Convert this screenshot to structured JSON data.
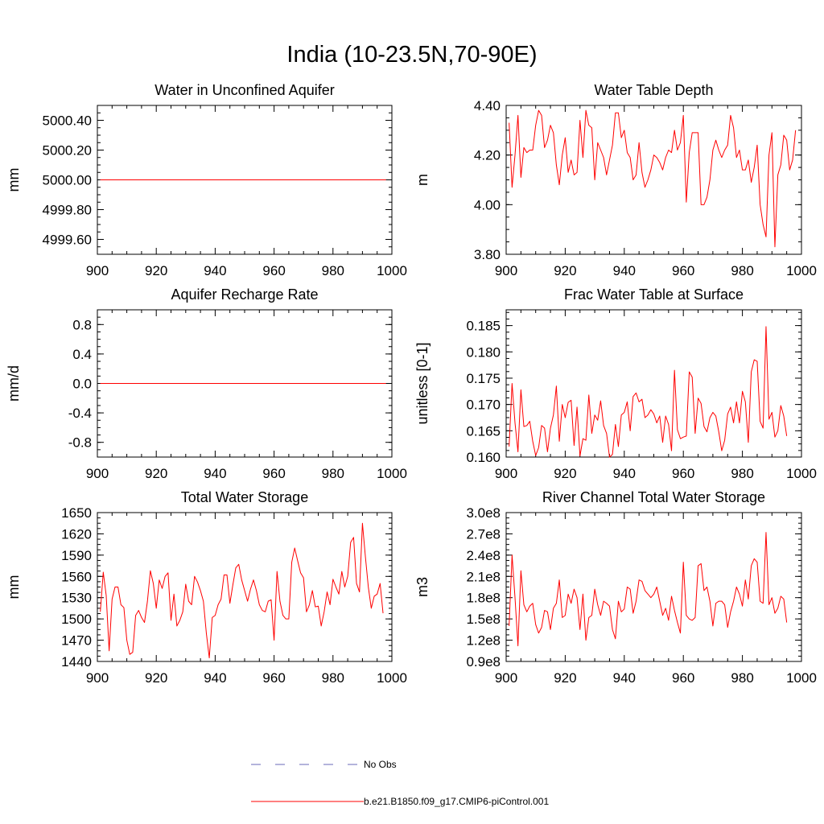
{
  "title": "India (10-23.5N,70-90E)",
  "colors": {
    "model": "#ff0000",
    "obs": "#6a6ab8",
    "axis": "#000000"
  },
  "legend": {
    "placement": "bottom-center",
    "entries": [
      {
        "label": "No Obs",
        "style": "dashed",
        "color": "#6a6ab8"
      },
      {
        "label": "b.e21.B1850.f09_g17.CMIP6-piControl.001",
        "style": "solid",
        "color": "#ff0000"
      }
    ]
  },
  "chart_data": [
    {
      "type": "line",
      "title": "Water in Unconfined Aquifer",
      "ylabel": "mm",
      "xlim": [
        900,
        1000
      ],
      "ylim": [
        4999.5,
        5000.5
      ],
      "xticks": [
        "900",
        "920",
        "940",
        "960",
        "980",
        "1000"
      ],
      "yticks": [
        {
          "value": 4999.6,
          "label": "4999.60"
        },
        {
          "value": 4999.8,
          "label": "4999.80"
        },
        {
          "value": 5000.0,
          "label": "5000.00"
        },
        {
          "value": 5000.2,
          "label": "5000.20"
        },
        {
          "value": 5000.4,
          "label": "5000.40"
        }
      ],
      "series": [
        {
          "x_start": 901,
          "y": [
            5000,
            5000,
            5000,
            5000,
            5000,
            5000,
            5000,
            5000,
            5000,
            5000,
            5000,
            5000,
            5000,
            5000,
            5000,
            5000,
            5000,
            5000,
            5000,
            5000,
            5000,
            5000,
            5000,
            5000,
            5000,
            5000,
            5000,
            5000,
            5000,
            5000,
            5000,
            5000,
            5000,
            5000,
            5000,
            5000,
            5000,
            5000,
            5000,
            5000,
            5000,
            5000,
            5000,
            5000,
            5000,
            5000,
            5000,
            5000,
            5000,
            5000,
            5000,
            5000,
            5000,
            5000,
            5000,
            5000,
            5000,
            5000,
            5000,
            5000,
            5000,
            5000,
            5000,
            5000,
            5000,
            5000,
            5000,
            5000,
            5000,
            5000,
            5000,
            5000,
            5000,
            5000,
            5000,
            5000,
            5000,
            5000,
            5000,
            5000,
            5000,
            5000,
            5000,
            5000,
            5000,
            5000,
            5000,
            5000,
            5000,
            5000,
            5000,
            5000,
            5000,
            5000,
            5000,
            5000,
            5000,
            5000
          ]
        }
      ]
    },
    {
      "type": "line",
      "title": "Water Table Depth",
      "ylabel": "m",
      "xlim": [
        900,
        1000
      ],
      "ylim": [
        3.8,
        4.4
      ],
      "xticks": [
        "900",
        "920",
        "940",
        "960",
        "980",
        "1000"
      ],
      "yticks": [
        {
          "value": 3.8,
          "label": "3.80"
        },
        {
          "value": 4.0,
          "label": "4.00"
        },
        {
          "value": 4.2,
          "label": "4.20"
        },
        {
          "value": 4.4,
          "label": "4.40"
        }
      ],
      "series": [
        {
          "x_start": 901,
          "y": [
            4.33,
            4.07,
            4.2,
            4.36,
            4.11,
            4.23,
            4.21,
            4.22,
            4.22,
            4.32,
            4.38,
            4.36,
            4.23,
            4.26,
            4.32,
            4.29,
            4.16,
            4.08,
            4.2,
            4.27,
            4.13,
            4.18,
            4.12,
            4.13,
            4.34,
            4.19,
            4.38,
            4.32,
            4.31,
            4.1,
            4.25,
            4.22,
            4.19,
            4.12,
            4.18,
            4.24,
            4.37,
            4.37,
            4.27,
            4.3,
            4.21,
            4.19,
            4.1,
            4.12,
            4.25,
            4.13,
            4.07,
            4.1,
            4.14,
            4.2,
            4.19,
            4.17,
            4.14,
            4.19,
            4.22,
            4.21,
            4.3,
            4.22,
            4.25,
            4.36,
            4.01,
            4.21,
            4.29,
            4.29,
            4.29,
            4.0,
            4.0,
            4.03,
            4.1,
            4.22,
            4.26,
            4.22,
            4.19,
            4.22,
            4.24,
            4.36,
            4.31,
            4.19,
            4.22,
            4.14,
            4.14,
            4.18,
            4.09,
            4.15,
            4.24,
            4.0,
            3.92,
            3.87,
            4.2,
            4.29,
            3.83,
            4.12,
            4.16,
            4.28,
            4.26,
            4.14,
            4.18,
            4.3
          ]
        }
      ]
    },
    {
      "type": "line",
      "title": "Aquifer Recharge Rate",
      "ylabel": "mm/d",
      "xlim": [
        900,
        1000
      ],
      "ylim": [
        -1.0,
        1.0
      ],
      "xticks": [
        "900",
        "920",
        "940",
        "960",
        "980",
        "1000"
      ],
      "yticks": [
        {
          "value": -0.8,
          "label": "-0.8"
        },
        {
          "value": -0.4,
          "label": "-0.4"
        },
        {
          "value": 0.0,
          "label": "0.0"
        },
        {
          "value": 0.4,
          "label": "0.4"
        },
        {
          "value": 0.8,
          "label": "0.8"
        }
      ],
      "series": [
        {
          "x_start": 901,
          "y": [
            0,
            0,
            0,
            0,
            0,
            0,
            0,
            0,
            0,
            0,
            0,
            0,
            0,
            0,
            0,
            0,
            0,
            0,
            0,
            0,
            0,
            0,
            0,
            0,
            0,
            0,
            0,
            0,
            0,
            0,
            0,
            0,
            0,
            0,
            0,
            0,
            0,
            0,
            0,
            0,
            0,
            0,
            0,
            0,
            0,
            0,
            0,
            0,
            0,
            0,
            0,
            0,
            0,
            0,
            0,
            0,
            0,
            0,
            0,
            0,
            0,
            0,
            0,
            0,
            0,
            0,
            0,
            0,
            0,
            0,
            0,
            0,
            0,
            0,
            0,
            0,
            0,
            0,
            0,
            0,
            0,
            0,
            0,
            0,
            0,
            0,
            0,
            0,
            0,
            0,
            0,
            0,
            0,
            0,
            0,
            0,
            0,
            0
          ]
        }
      ]
    },
    {
      "type": "line",
      "title": "Frac Water Table at Surface",
      "ylabel": "unitless [0-1]",
      "xlim": [
        900,
        1000
      ],
      "ylim": [
        0.16,
        0.188
      ],
      "xticks": [
        "900",
        "920",
        "940",
        "960",
        "980",
        "1000"
      ],
      "yticks": [
        {
          "value": 0.16,
          "label": "0.160"
        },
        {
          "value": 0.165,
          "label": "0.165"
        },
        {
          "value": 0.17,
          "label": "0.170"
        },
        {
          "value": 0.175,
          "label": "0.175"
        },
        {
          "value": 0.18,
          "label": "0.180"
        },
        {
          "value": 0.185,
          "label": "0.185"
        }
      ],
      "series": [
        {
          "x_start": 901,
          "y": [
            0.162,
            0.174,
            0.1665,
            0.161,
            0.1728,
            0.1658,
            0.166,
            0.1668,
            0.163,
            0.1603,
            0.1618,
            0.166,
            0.1655,
            0.161,
            0.1655,
            0.168,
            0.1735,
            0.163,
            0.17,
            0.1675,
            0.1704,
            0.1708,
            0.1622,
            0.1695,
            0.1602,
            0.1635,
            0.1632,
            0.1718,
            0.1645,
            0.168,
            0.167,
            0.1707,
            0.166,
            0.1645,
            0.16,
            0.1605,
            0.1662,
            0.162,
            0.168,
            0.1685,
            0.1705,
            0.165,
            0.1715,
            0.1722,
            0.1705,
            0.171,
            0.1675,
            0.168,
            0.169,
            0.1682,
            0.1665,
            0.1678,
            0.1628,
            0.1678,
            0.1662,
            0.1612,
            0.1765,
            0.1652,
            0.1635,
            0.1638,
            0.164,
            0.1762,
            0.1752,
            0.1645,
            0.1712,
            0.1702,
            0.1658,
            0.1648,
            0.1675,
            0.1685,
            0.1678,
            0.1648,
            0.1612,
            0.1632,
            0.1682,
            0.1695,
            0.1665,
            0.1705,
            0.1665,
            0.1725,
            0.1705,
            0.1628,
            0.1762,
            0.1785,
            0.1782,
            0.1668,
            0.1655,
            0.1848,
            0.1672,
            0.1685,
            0.1638,
            0.165,
            0.1698,
            0.1678,
            0.164
          ]
        }
      ]
    },
    {
      "type": "line",
      "title": "Total Water Storage",
      "ylabel": "mm",
      "xlim": [
        900,
        1000
      ],
      "ylim": [
        1440,
        1650
      ],
      "xticks": [
        "900",
        "920",
        "940",
        "960",
        "980",
        "1000"
      ],
      "yticks": [
        {
          "value": 1440,
          "label": "1440"
        },
        {
          "value": 1470,
          "label": "1470"
        },
        {
          "value": 1500,
          "label": "1500"
        },
        {
          "value": 1530,
          "label": "1530"
        },
        {
          "value": 1560,
          "label": "1560"
        },
        {
          "value": 1590,
          "label": "1590"
        },
        {
          "value": 1620,
          "label": "1620"
        },
        {
          "value": 1650,
          "label": "1650"
        }
      ],
      "series": [
        {
          "x_start": 901,
          "y": [
            1510,
            1566,
            1533,
            1455,
            1528,
            1545,
            1545,
            1520,
            1516,
            1470,
            1450,
            1453,
            1505,
            1512,
            1502,
            1495,
            1525,
            1568,
            1550,
            1515,
            1555,
            1543,
            1560,
            1565,
            1498,
            1535,
            1490,
            1498,
            1510,
            1549,
            1525,
            1520,
            1560,
            1552,
            1540,
            1525,
            1480,
            1445,
            1502,
            1505,
            1520,
            1528,
            1562,
            1562,
            1522,
            1548,
            1572,
            1577,
            1555,
            1540,
            1525,
            1542,
            1555,
            1540,
            1520,
            1512,
            1510,
            1525,
            1527,
            1470,
            1567,
            1525,
            1505,
            1500,
            1500,
            1580,
            1600,
            1582,
            1565,
            1558,
            1510,
            1520,
            1540,
            1517,
            1518,
            1490,
            1510,
            1538,
            1520,
            1556,
            1545,
            1535,
            1567,
            1545,
            1560,
            1608,
            1615,
            1550,
            1538,
            1635,
            1588,
            1545,
            1515,
            1532,
            1535,
            1550,
            1508
          ]
        }
      ]
    },
    {
      "type": "line",
      "title": "River Channel Total Water Storage",
      "ylabel": "m3",
      "xlim": [
        900,
        1000
      ],
      "ylim": [
        90000000.0,
        300000000.0
      ],
      "xticks": [
        "900",
        "920",
        "940",
        "960",
        "980",
        "1000"
      ],
      "yticks": [
        {
          "value": 90000000.0,
          "label": "0.9e8"
        },
        {
          "value": 120000000.0,
          "label": "1.2e8"
        },
        {
          "value": 150000000.0,
          "label": "1.5e8"
        },
        {
          "value": 180000000.0,
          "label": "1.8e8"
        },
        {
          "value": 210000000.0,
          "label": "2.1e8"
        },
        {
          "value": 240000000.0,
          "label": "2.4e8"
        },
        {
          "value": 270000000.0,
          "label": "2.7e8"
        },
        {
          "value": 300000000.0,
          "label": "3.0e8"
        }
      ],
      "series": [
        {
          "x_start": 901,
          "y": [
            140000000.0,
            240000000.0,
            180000000.0,
            112000000.0,
            218000000.0,
            170000000.0,
            160000000.0,
            168000000.0,
            172000000.0,
            142000000.0,
            130000000.0,
            138000000.0,
            162000000.0,
            160000000.0,
            135000000.0,
            165000000.0,
            172000000.0,
            205000000.0,
            152000000.0,
            155000000.0,
            185000000.0,
            172000000.0,
            192000000.0,
            180000000.0,
            135000000.0,
            185000000.0,
            120000000.0,
            152000000.0,
            155000000.0,
            192000000.0,
            170000000.0,
            155000000.0,
            175000000.0,
            172000000.0,
            168000000.0,
            135000000.0,
            122000000.0,
            175000000.0,
            160000000.0,
            164000000.0,
            195000000.0,
            192000000.0,
            158000000.0,
            175000000.0,
            205000000.0,
            203000000.0,
            190000000.0,
            185000000.0,
            180000000.0,
            185000000.0,
            195000000.0,
            175000000.0,
            155000000.0,
            165000000.0,
            148000000.0,
            182000000.0,
            162000000.0,
            145000000.0,
            130000000.0,
            230000000.0,
            155000000.0,
            150000000.0,
            148000000.0,
            152000000.0,
            225000000.0,
            228000000.0,
            190000000.0,
            195000000.0,
            175000000.0,
            140000000.0,
            172000000.0,
            175000000.0,
            175000000.0,
            170000000.0,
            138000000.0,
            160000000.0,
            175000000.0,
            195000000.0,
            185000000.0,
            168000000.0,
            205000000.0,
            178000000.0,
            225000000.0,
            235000000.0,
            230000000.0,
            175000000.0,
            172000000.0,
            272000000.0,
            170000000.0,
            180000000.0,
            158000000.0,
            165000000.0,
            182000000.0,
            178000000.0,
            145000000.0
          ]
        }
      ]
    }
  ]
}
